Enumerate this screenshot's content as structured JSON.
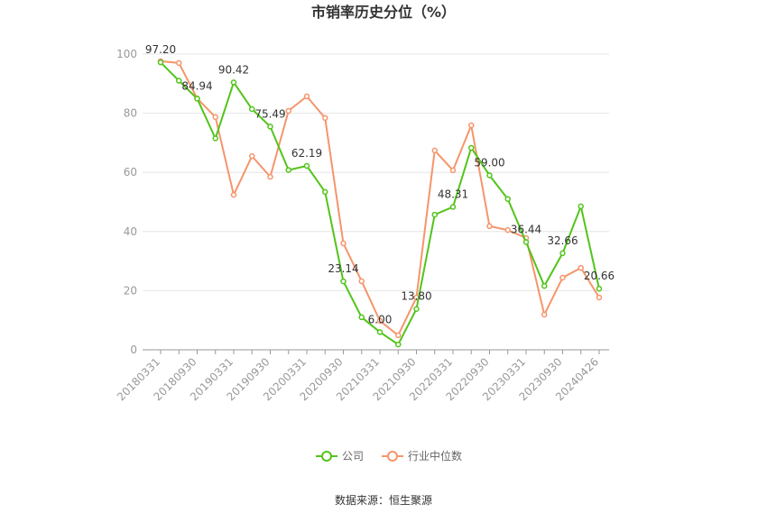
{
  "chart_data": {
    "type": "line",
    "title": "市销率历史分位（%）",
    "categories": [
      "20180331",
      null,
      "20180930",
      null,
      "20190331",
      null,
      "20190930",
      null,
      "20200331",
      null,
      "20200930",
      null,
      "20210331",
      null,
      "20210930",
      null,
      "20220331",
      null,
      "20220930",
      null,
      "20230331",
      null,
      "20230930",
      null,
      "20240426"
    ],
    "series": [
      {
        "name": "公司",
        "color": "#52c41a",
        "values": [
          97.2,
          91,
          84.94,
          71.5,
          90.42,
          81.4,
          75.49,
          60.8,
          62.19,
          53.4,
          23.14,
          11,
          6.0,
          1.8,
          13.8,
          45.7,
          48.31,
          68.3,
          59.0,
          51,
          36.44,
          21.6,
          32.66,
          48.5,
          20.66
        ],
        "value_labels": [
          "97.20",
          null,
          "84.94",
          null,
          "90.42",
          null,
          "75.49",
          null,
          "62.19",
          null,
          "23.14",
          null,
          "6.00",
          null,
          "13.80",
          null,
          "48.31",
          null,
          "59.00",
          null,
          "36.44",
          null,
          "32.66",
          null,
          "20.66"
        ]
      },
      {
        "name": "行业中位数",
        "color": "#f5956b",
        "values": [
          97.6,
          97,
          85,
          78.7,
          52.4,
          65.5,
          58.5,
          80.8,
          85.7,
          78.4,
          36,
          23.2,
          9.8,
          4.9,
          17.7,
          67.4,
          60.7,
          75.9,
          41.8,
          40.5,
          37.8,
          11.9,
          24.4,
          27.7,
          17.7
        ]
      }
    ],
    "ylim": [
      0,
      100
    ],
    "yticks": [
      0,
      20,
      40,
      60,
      80,
      100
    ],
    "grid": true,
    "source": "数据来源：恒生聚源"
  }
}
